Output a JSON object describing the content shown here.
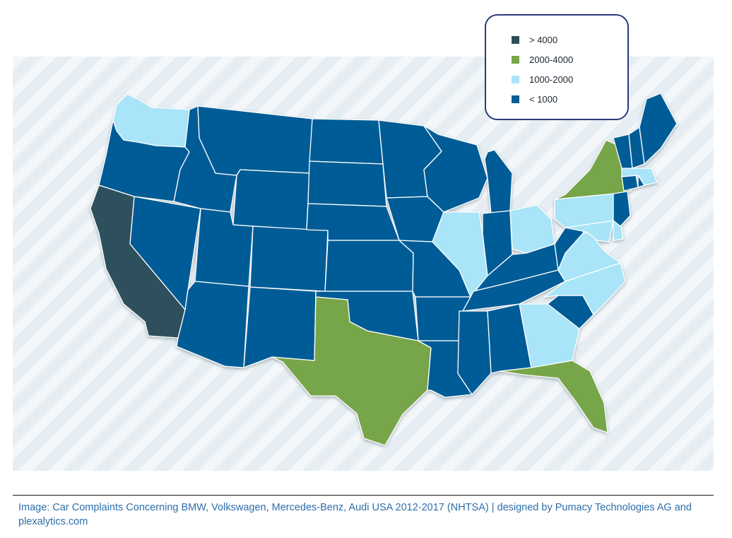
{
  "legend": {
    "items": [
      {
        "label": "> 4000",
        "color": "#2d4f5c"
      },
      {
        "label": "2000-4000",
        "color": "#77a548"
      },
      {
        "label": "1000-2000",
        "color": "#a9e4f8"
      },
      {
        "label": "< 1000",
        "color": "#055c96"
      }
    ]
  },
  "map": {
    "type": "choropleth",
    "region": "Contiguous United States",
    "border_color": "#ffffff",
    "states_by_class": {
      "> 4000": [
        "CA"
      ],
      "2000-4000": [
        "TX",
        "FL",
        "NY"
      ],
      "1000-2000": [
        "WA",
        "IL",
        "OH",
        "PA",
        "VA",
        "NC",
        "GA",
        "MA",
        "MD",
        "DE"
      ],
      "< 1000": [
        "OR",
        "NV",
        "ID",
        "MT",
        "WY",
        "UT",
        "AZ",
        "CO",
        "NM",
        "ND",
        "SD",
        "NE",
        "KS",
        "OK",
        "MN",
        "IA",
        "MO",
        "AR",
        "LA",
        "WI",
        "MI",
        "IN",
        "KY",
        "TN",
        "MS",
        "AL",
        "SC",
        "WV",
        "NJ",
        "CT",
        "RI",
        "VT",
        "NH",
        "ME"
      ]
    }
  },
  "caption": "Image: Car Complaints Concerning BMW, Volkswagen, Mercedes-Benz, Audi USA 2012-2017 (NHTSA) | designed by Pumacy Technologies AG and plexalytics.com"
}
